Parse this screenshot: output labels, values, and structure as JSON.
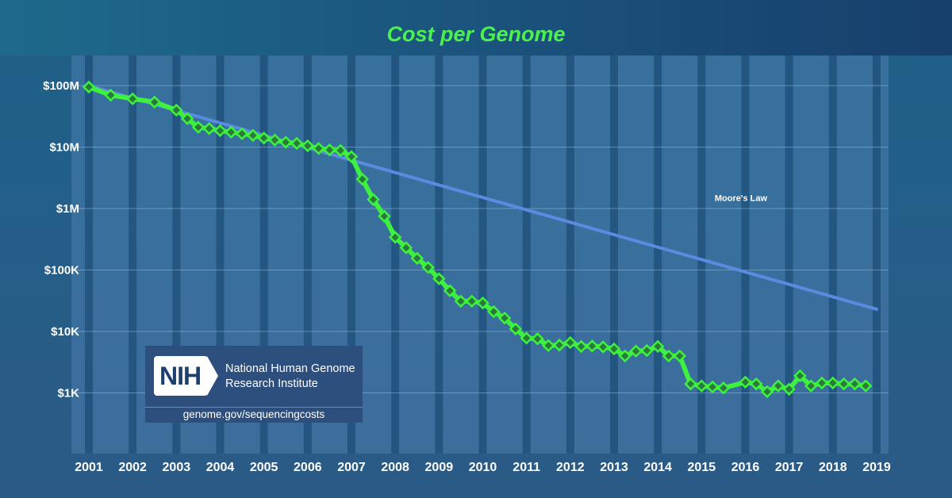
{
  "chart_data": {
    "type": "line",
    "title": "Cost per Genome",
    "xlabel": "",
    "ylabel": "",
    "y_scale": "log",
    "ylim": [
      100,
      150000000
    ],
    "xlim": [
      2001.0,
      2019.0
    ],
    "y_ticks": [
      {
        "value": 100000000,
        "label": "$100M"
      },
      {
        "value": 10000000,
        "label": "$10M"
      },
      {
        "value": 1000000,
        "label": "$1M"
      },
      {
        "value": 100000,
        "label": "$100K"
      },
      {
        "value": 10000,
        "label": "$10K"
      },
      {
        "value": 1000,
        "label": "$1K"
      }
    ],
    "x_ticks": [
      "2001",
      "2002",
      "2003",
      "2004",
      "2005",
      "2006",
      "2007",
      "2008",
      "2009",
      "2010",
      "2011",
      "2012",
      "2013",
      "2014",
      "2015",
      "2016",
      "2017",
      "2018",
      "2019"
    ],
    "series": [
      {
        "name": "Cost per Genome",
        "color": "#3ff13f",
        "x": [
          2001.0,
          2001.5,
          2002.0,
          2002.5,
          2003.0,
          2003.25,
          2003.5,
          2003.75,
          2004.0,
          2004.25,
          2004.5,
          2004.75,
          2005.0,
          2005.25,
          2005.5,
          2005.75,
          2006.0,
          2006.25,
          2006.5,
          2006.75,
          2007.0,
          2007.25,
          2007.5,
          2007.75,
          2008.0,
          2008.25,
          2008.5,
          2008.75,
          2009.0,
          2009.25,
          2009.5,
          2009.75,
          2010.0,
          2010.25,
          2010.5,
          2010.75,
          2011.0,
          2011.25,
          2011.5,
          2011.75,
          2012.0,
          2012.25,
          2012.5,
          2012.75,
          2013.0,
          2013.25,
          2013.5,
          2013.75,
          2014.0,
          2014.25,
          2014.5,
          2014.75,
          2015.0,
          2015.25,
          2015.5,
          2016.0,
          2016.25,
          2016.5,
          2016.75,
          2017.0,
          2017.25,
          2017.5,
          2017.75,
          2018.0,
          2018.25,
          2018.5,
          2018.75
        ],
        "values": [
          95000000,
          70000000,
          61000000,
          54000000,
          40000000,
          29000000,
          21000000,
          20000000,
          18500000,
          17500000,
          16500000,
          15500000,
          14000000,
          13000000,
          12000000,
          11500000,
          10500000,
          9500000,
          9000000,
          8800000,
          7000000,
          3000000,
          1400000,
          750000,
          340000,
          230000,
          155000,
          110000,
          72000,
          46000,
          31000,
          31000,
          29000,
          21000,
          16500,
          11000,
          7800,
          7600,
          5900,
          6000,
          6600,
          5700,
          5800,
          5600,
          5200,
          4000,
          4800,
          4900,
          5700,
          4000,
          4000,
          1400,
          1300,
          1250,
          1200,
          1500,
          1400,
          1050,
          1300,
          1150,
          1900,
          1300,
          1450,
          1450,
          1400,
          1400,
          1300
        ]
      },
      {
        "name": "Moore's Law",
        "color": "#5b8be0",
        "x": [
          2001.0,
          2019.0
        ],
        "values": [
          100000000,
          23000
        ]
      }
    ],
    "annotations": [
      {
        "text": "Moore's Law",
        "x": 2015.3,
        "y": 1500000
      }
    ]
  },
  "logo": {
    "mark": "NIH",
    "name_line1": "National Human Genome",
    "name_line2": "Research Institute",
    "url": "genome.gov/sequencingcosts"
  }
}
